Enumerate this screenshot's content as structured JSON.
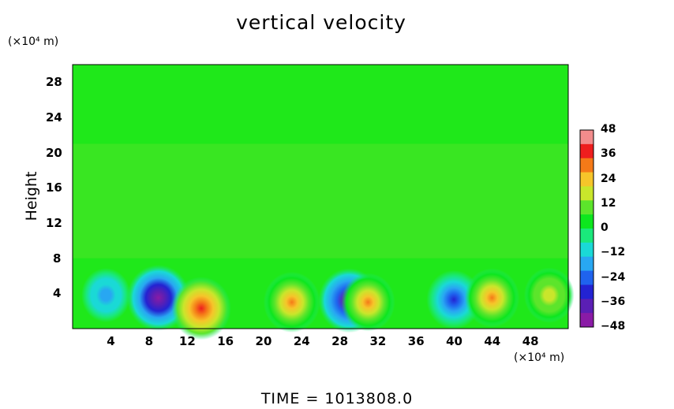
{
  "chart_data": {
    "type": "heatmap",
    "title": "vertical velocity",
    "xunit": "(×10⁴ m)",
    "yunit": "(×10⁴ m)",
    "ylabel": "Height",
    "xlabel": "",
    "footer": "TIME  =  1013808.0",
    "xlim": [
      0,
      52
    ],
    "ylim": [
      0,
      30
    ],
    "xticks": [
      4,
      8,
      12,
      16,
      20,
      24,
      28,
      32,
      36,
      40,
      44,
      48
    ],
    "yticks": [
      4,
      8,
      12,
      16,
      20,
      24,
      28
    ],
    "colorbar": {
      "range": [
        -48,
        48
      ],
      "ticks": [
        48,
        36,
        24,
        12,
        0,
        -12,
        -24,
        -36,
        -48
      ],
      "colors": [
        "#f28c8c",
        "#ee1e1e",
        "#f57a18",
        "#f6c52a",
        "#c9e62b",
        "#5ce52b",
        "#0de61e",
        "#1ae87b",
        "#1ad9d6",
        "#28a7f2",
        "#1f63ee",
        "#2323d2",
        "#5b1fb4",
        "#8a1ba6"
      ]
    },
    "features": [
      {
        "x": 9,
        "y": 3.5,
        "value": -48
      },
      {
        "x": 13.5,
        "y": 2.3,
        "value": 40
      },
      {
        "x": 23,
        "y": 3,
        "value": 34
      },
      {
        "x": 29,
        "y": 3.2,
        "value": -44
      },
      {
        "x": 31,
        "y": 3,
        "value": 28
      },
      {
        "x": 40,
        "y": 3.3,
        "value": -30
      },
      {
        "x": 44,
        "y": 3.5,
        "value": 30
      },
      {
        "x": 3.5,
        "y": 3.8,
        "value": -18
      },
      {
        "x": 50,
        "y": 3.8,
        "value": 20
      }
    ]
  }
}
